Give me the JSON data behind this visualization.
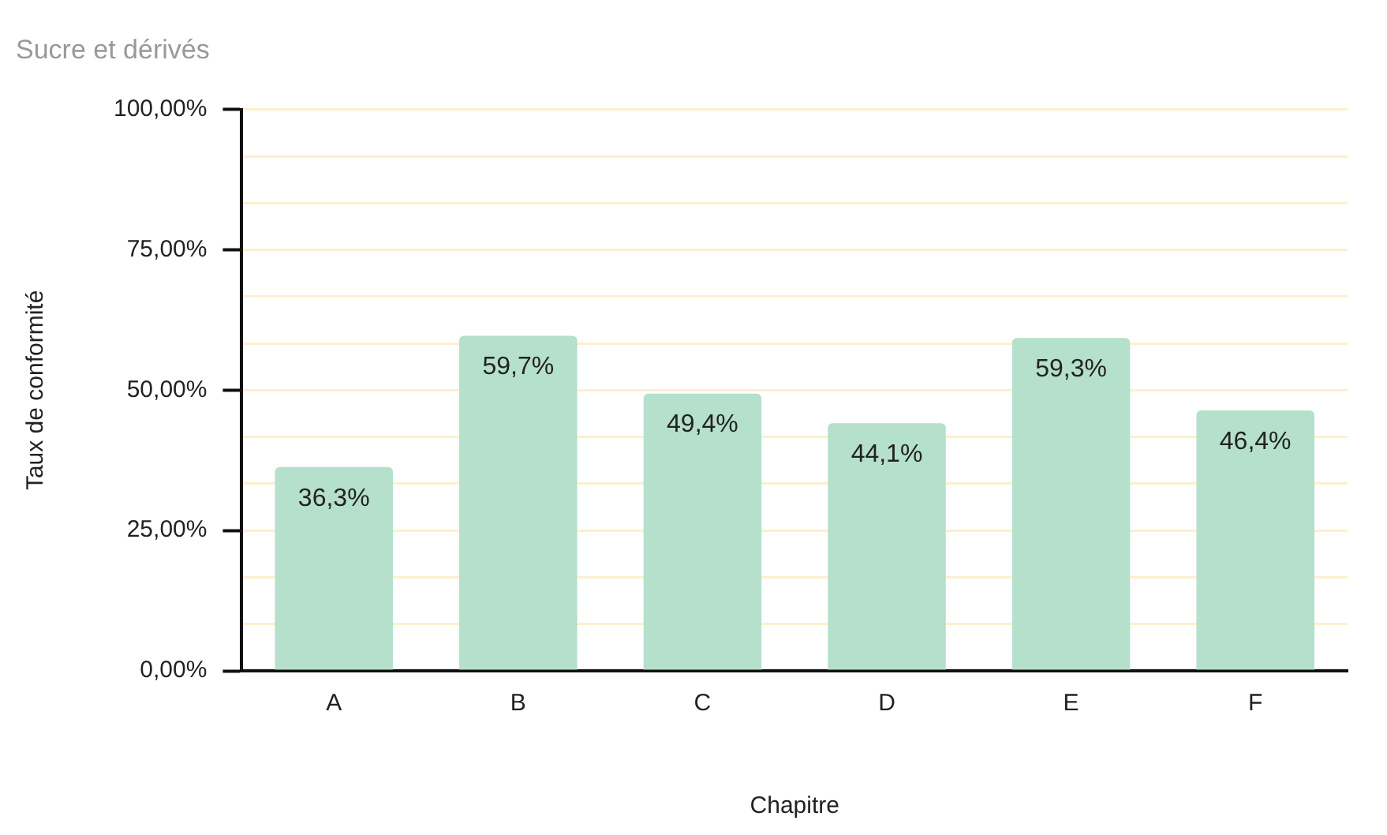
{
  "chart_data": {
    "type": "bar",
    "title": "Sucre et dérivés",
    "xlabel": "Chapitre",
    "ylabel": "Taux de conformité",
    "categories": [
      "A",
      "B",
      "C",
      "D",
      "E",
      "F"
    ],
    "values": [
      36.3,
      59.7,
      49.4,
      44.1,
      59.3,
      46.4
    ],
    "value_labels": [
      "36,3%",
      "59,7%",
      "49,4%",
      "44,1%",
      "59,3%",
      "46,4%"
    ],
    "color": "#b5e0cb",
    "ylim": [
      0,
      100
    ],
    "yticks": [
      {
        "value": 0,
        "label": "0,00%"
      },
      {
        "value": 8.33,
        "label": null
      },
      {
        "value": 16.67,
        "label": null
      },
      {
        "value": 25,
        "label": "25,00%"
      },
      {
        "value": 33.33,
        "label": null
      },
      {
        "value": 41.67,
        "label": null
      },
      {
        "value": 50,
        "label": "50,00%"
      },
      {
        "value": 58.33,
        "label": null
      },
      {
        "value": 66.67,
        "label": null
      },
      {
        "value": 75,
        "label": "75,00%"
      },
      {
        "value": 83.33,
        "label": null
      },
      {
        "value": 91.67,
        "label": null
      },
      {
        "value": 100,
        "label": "100,00%"
      }
    ],
    "grid": "y"
  }
}
